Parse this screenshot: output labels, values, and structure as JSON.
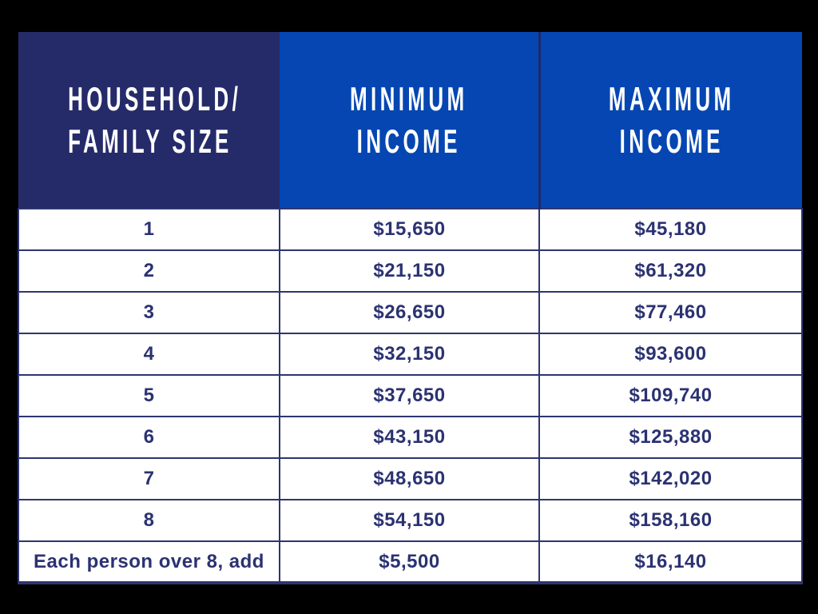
{
  "colors": {
    "background": "#000000",
    "header_dark": "#252b69",
    "header_blue": "#0546b2",
    "header_divider": "#1c2a6a",
    "header_text": "#ffffff",
    "cell_bg": "#ffffff",
    "body_text": "#2b3272",
    "border": "#2e356f"
  },
  "chart_data": {
    "type": "table",
    "columns": [
      {
        "label": "HOUSEHOLD/ FAMILY SIZE",
        "line1": "HOUSEHOLD/",
        "line2": "FAMILY SIZE"
      },
      {
        "label": "MINIMUM INCOME",
        "line1": "MINIMUM",
        "line2": "INCOME"
      },
      {
        "label": "MAXIMUM INCOME",
        "line1": "MAXIMUM",
        "line2": "INCOME"
      }
    ],
    "rows": [
      [
        "1",
        "$15,650",
        "$45,180"
      ],
      [
        "2",
        "$21,150",
        "$61,320"
      ],
      [
        "3",
        "$26,650",
        "$77,460"
      ],
      [
        "4",
        "$32,150",
        "$93,600"
      ],
      [
        "5",
        "$37,650",
        "$109,740"
      ],
      [
        "6",
        "$43,150",
        "$125,880"
      ],
      [
        "7",
        "$48,650",
        "$142,020"
      ],
      [
        "8",
        "$54,150",
        "$158,160"
      ],
      [
        "Each person over 8, add",
        "$5,500",
        "$16,140"
      ]
    ]
  }
}
